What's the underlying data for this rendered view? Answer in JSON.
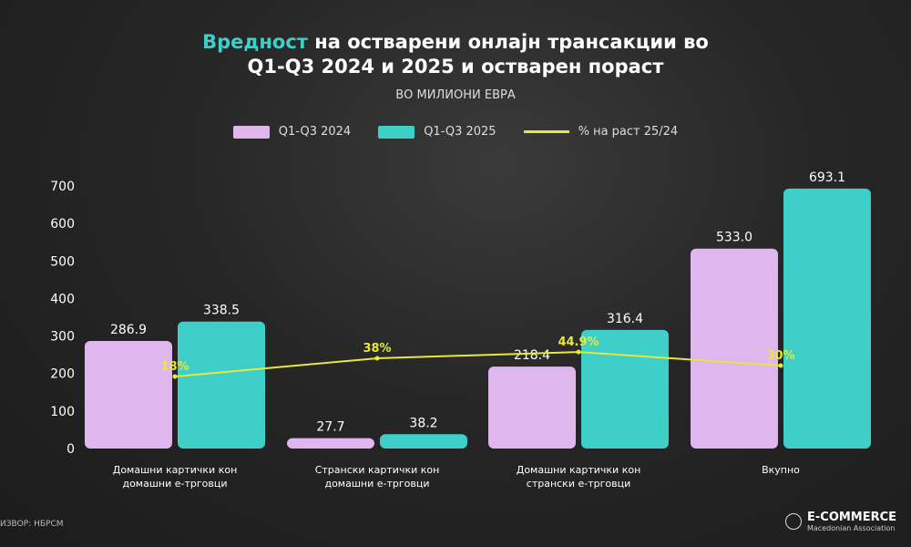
{
  "title": {
    "accent": "Вредност",
    "rest": " на остварени онлајн трансакции во",
    "line2": "Q1-Q3 2024 и 2025 и остварен пораст"
  },
  "subtitle": "ВО МИЛИОНИ ЕВРА",
  "source": "ИЗВОР: НБРСМ",
  "logo": {
    "name": "E-COMMERCE",
    "tagline": "Macedonian Association"
  },
  "colors": {
    "s2024": "#e0b6ef",
    "s2025": "#3ecfc8",
    "growth": "#e8e83a"
  },
  "chart_data": {
    "type": "bar",
    "title": "Вредност на остварени онлајн трансакции во Q1-Q3 2024 и 2025 и остварен пораст",
    "ylabel": "ВО МИЛИОНИ ЕВРА",
    "ylim": [
      0,
      700
    ],
    "yticks": [
      "0",
      "100",
      "200",
      "300",
      "400",
      "500",
      "600",
      "700"
    ],
    "categories": [
      [
        "Домашни картички кон",
        "домашни е-трговци"
      ],
      [
        "Странски картички кон",
        "домашни е-трговци"
      ],
      [
        "Домашни картички кон",
        "странски е-трговци"
      ],
      [
        "Вкупно",
        ""
      ]
    ],
    "series": [
      {
        "name": "Q1-Q3 2024",
        "values": [
          286.9,
          27.7,
          218.4,
          533.0
        ],
        "labels": [
          "286.9",
          "27.7",
          "218.4",
          "533.0"
        ]
      },
      {
        "name": "Q1-Q3 2025",
        "values": [
          338.5,
          38.2,
          316.4,
          693.1
        ],
        "labels": [
          "338.5",
          "38.2",
          "316.4",
          "693.1"
        ]
      }
    ],
    "line": {
      "name": "% на раст 25/24",
      "values": [
        18,
        38,
        44.9,
        30
      ],
      "labels": [
        "18%",
        "38%",
        "44.9%",
        "30%"
      ]
    },
    "legend": "top-center"
  }
}
